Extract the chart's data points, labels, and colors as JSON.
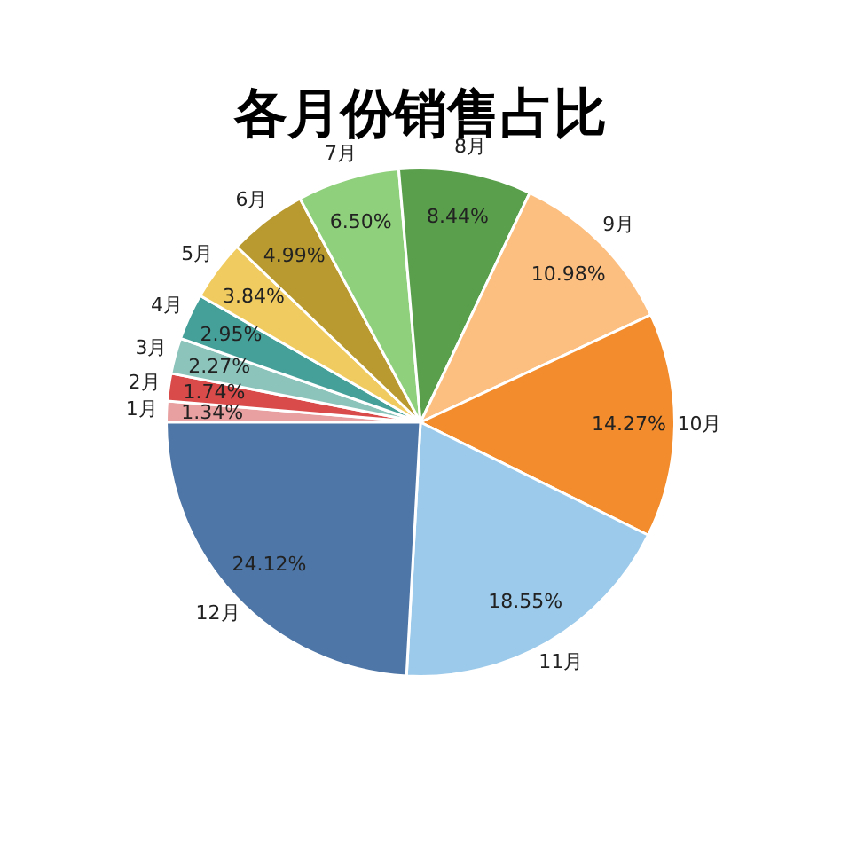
{
  "chart_data": {
    "type": "pie",
    "title": "各月份销售占比",
    "categories": [
      "1月",
      "2月",
      "3月",
      "4月",
      "5月",
      "6月",
      "7月",
      "8月",
      "9月",
      "10月",
      "11月",
      "12月"
    ],
    "values": [
      1.34,
      1.74,
      2.27,
      2.95,
      3.84,
      4.99,
      6.5,
      8.44,
      10.98,
      14.27,
      18.55,
      24.12
    ],
    "value_labels": [
      "1.34%",
      "1.74%",
      "2.27%",
      "2.95%",
      "3.84%",
      "4.99%",
      "6.50%",
      "8.44%",
      "10.98%",
      "14.27%",
      "18.55%",
      "24.12%"
    ],
    "colors": [
      "#e8a0a0",
      "#d94a4a",
      "#8cc4bc",
      "#45a09a",
      "#f0cc60",
      "#b89a30",
      "#8fd07c",
      "#5aa04c",
      "#fdbf80",
      "#f28c2c",
      "#9ccaea",
      "#4e76a6"
    ],
    "legend": false
  }
}
